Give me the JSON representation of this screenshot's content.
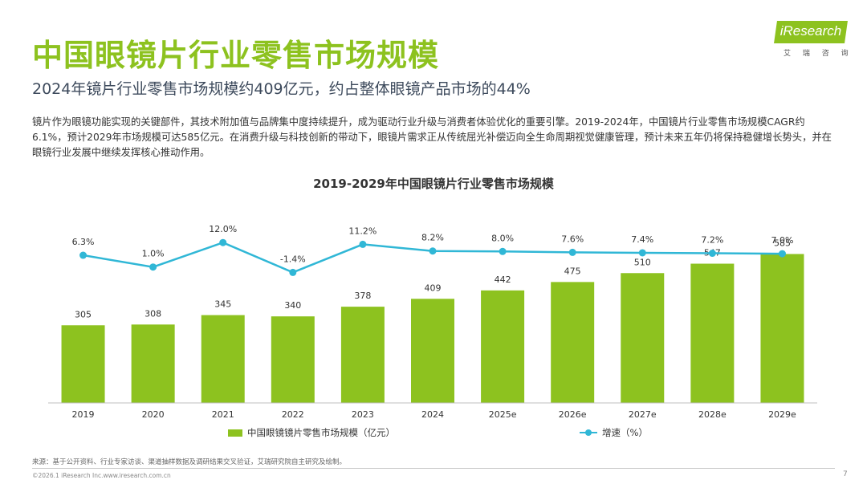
{
  "header": {
    "title": "中国眼镜片行业零售市场规模",
    "subtitle": "2024年镜片行业零售市场规模约409亿元，约占整体眼镜产品市场的44%",
    "body": "镜片作为眼镜功能实现的关键部件，其技术附加值与品牌集中度持续提升，成为驱动行业升级与消费者体验优化的重要引擎。2019-2024年，中国镜片行业零售市场规模CAGR约6.1%，预计2029年市场规模可达585亿元。在消费升级与科技创新的带动下，眼镜片需求正从传统屈光补偿迈向全生命周期视觉健康管理，预计未来五年仍将保持稳健增长势头，并在眼镜行业发展中继续发挥核心推动作用。"
  },
  "logo": {
    "brand": "iResearch",
    "tagline": "艾 瑞 咨 询"
  },
  "colors": {
    "brand_green": "#8dc21f",
    "bar": "#8dc21f",
    "line": "#30b7d6",
    "subtitle": "#3d4a5c"
  },
  "chart_data": {
    "type": "bar",
    "title": "2019-2029年中国眼镜片行业零售市场规模",
    "categories": [
      "2019",
      "2020",
      "2021",
      "2022",
      "2023",
      "2024",
      "2025e",
      "2026e",
      "2027e",
      "2028e",
      "2029e"
    ],
    "series": [
      {
        "name": "中国眼镜镜片零售市场规模（亿元）",
        "type": "bar",
        "axis": "left",
        "values": [
          305,
          308,
          345,
          340,
          378,
          409,
          442,
          475,
          510,
          547,
          585
        ]
      },
      {
        "name": "增速（%）",
        "type": "line",
        "axis": "right",
        "values": [
          6.3,
          1.0,
          12.0,
          -1.4,
          11.2,
          8.2,
          8.0,
          7.6,
          7.4,
          7.2,
          7.0
        ],
        "labels": [
          "6.3%",
          "1.0%",
          "12.0%",
          "-1.4%",
          "11.2%",
          "8.2%",
          "8.0%",
          "7.6%",
          "7.4%",
          "7.2%",
          "7.0%"
        ]
      }
    ],
    "ylim_left": [
      0,
      700
    ],
    "ylim_right": [
      -60,
      20
    ],
    "legend": "bottom",
    "grid": false
  },
  "footer": {
    "source": "来源：基于公开资料、行业专家访谈、渠道抽样数据及调研结果交叉验证，艾瑞研究院自主研究及绘制。",
    "copyright": "©2026.1 iResearch Inc.www.iresearch.com.cn",
    "page": "7"
  }
}
